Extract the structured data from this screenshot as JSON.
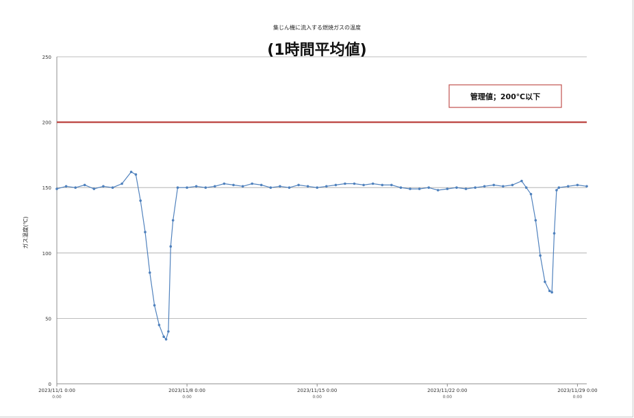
{
  "chart_data": {
    "type": "line",
    "subtitle": "集じん機に流入する燃焼ガスの温度",
    "title": "(1時間平均値)",
    "xlabel": "",
    "ylabel": "ガス温度(℃)",
    "ylim": [
      0,
      250
    ],
    "yticks": [
      "0",
      "50",
      "100",
      "150",
      "200",
      "250"
    ],
    "xlim": [
      "2023-11-01 00:00",
      "2023-11-29 12:00"
    ],
    "xticks": [
      {
        "date": "2023-11-01 00:00",
        "line1": "2023/11/1 0:00",
        "line2": "0:00"
      },
      {
        "date": "2023-11-08 00:00",
        "line1": "2023/11/8 0:00",
        "line2": "0:00"
      },
      {
        "date": "2023-11-15 00:00",
        "line1": "2023/11/15 0:00",
        "line2": "0:00"
      },
      {
        "date": "2023-11-22 00:00",
        "line1": "2023/11/22 0:00",
        "line2": "0:00"
      },
      {
        "date": "2023-11-29 00:00",
        "line1": "2023/11/29 0:00",
        "line2": "0:00"
      }
    ],
    "grid": true,
    "limit_line": {
      "value": 200,
      "color": "#c0504d"
    },
    "annotation": {
      "text": "管理値；200℃以下",
      "border_color": "#c0504d"
    },
    "series_color": "#4f81bd",
    "points": [
      [
        "2023-11-01 00:00",
        149
      ],
      [
        "2023-11-01 12:00",
        151
      ],
      [
        "2023-11-02 00:00",
        150
      ],
      [
        "2023-11-02 12:00",
        152
      ],
      [
        "2023-11-03 00:00",
        149
      ],
      [
        "2023-11-03 12:00",
        151
      ],
      [
        "2023-11-04 00:00",
        150
      ],
      [
        "2023-11-04 12:00",
        153
      ],
      [
        "2023-11-05 00:00",
        162
      ],
      [
        "2023-11-05 06:00",
        160
      ],
      [
        "2023-11-05 12:00",
        140
      ],
      [
        "2023-11-05 18:00",
        116
      ],
      [
        "2023-11-06 00:00",
        85
      ],
      [
        "2023-11-06 06:00",
        60
      ],
      [
        "2023-11-06 12:00",
        45
      ],
      [
        "2023-11-06 18:00",
        36
      ],
      [
        "2023-11-06 21:00",
        34
      ],
      [
        "2023-11-07 00:00",
        40
      ],
      [
        "2023-11-07 03:00",
        105
      ],
      [
        "2023-11-07 06:00",
        125
      ],
      [
        "2023-11-07 12:00",
        150
      ],
      [
        "2023-11-08 00:00",
        150
      ],
      [
        "2023-11-08 12:00",
        151
      ],
      [
        "2023-11-09 00:00",
        150
      ],
      [
        "2023-11-09 12:00",
        151
      ],
      [
        "2023-11-10 00:00",
        153
      ],
      [
        "2023-11-10 12:00",
        152
      ],
      [
        "2023-11-11 00:00",
        151
      ],
      [
        "2023-11-11 12:00",
        153
      ],
      [
        "2023-11-12 00:00",
        152
      ],
      [
        "2023-11-12 12:00",
        150
      ],
      [
        "2023-11-13 00:00",
        151
      ],
      [
        "2023-11-13 12:00",
        150
      ],
      [
        "2023-11-14 00:00",
        152
      ],
      [
        "2023-11-14 12:00",
        151
      ],
      [
        "2023-11-15 00:00",
        150
      ],
      [
        "2023-11-15 12:00",
        151
      ],
      [
        "2023-11-16 00:00",
        152
      ],
      [
        "2023-11-16 12:00",
        153
      ],
      [
        "2023-11-17 00:00",
        153
      ],
      [
        "2023-11-17 12:00",
        152
      ],
      [
        "2023-11-18 00:00",
        153
      ],
      [
        "2023-11-18 12:00",
        152
      ],
      [
        "2023-11-19 00:00",
        152
      ],
      [
        "2023-11-19 12:00",
        150
      ],
      [
        "2023-11-20 00:00",
        149
      ],
      [
        "2023-11-20 12:00",
        149
      ],
      [
        "2023-11-21 00:00",
        150
      ],
      [
        "2023-11-21 12:00",
        148
      ],
      [
        "2023-11-22 00:00",
        149
      ],
      [
        "2023-11-22 12:00",
        150
      ],
      [
        "2023-11-23 00:00",
        149
      ],
      [
        "2023-11-23 12:00",
        150
      ],
      [
        "2023-11-24 00:00",
        151
      ],
      [
        "2023-11-24 12:00",
        152
      ],
      [
        "2023-11-25 00:00",
        151
      ],
      [
        "2023-11-25 12:00",
        152
      ],
      [
        "2023-11-26 00:00",
        155
      ],
      [
        "2023-11-26 06:00",
        150
      ],
      [
        "2023-11-26 12:00",
        145
      ],
      [
        "2023-11-26 18:00",
        125
      ],
      [
        "2023-11-27 00:00",
        98
      ],
      [
        "2023-11-27 06:00",
        78
      ],
      [
        "2023-11-27 12:00",
        71
      ],
      [
        "2023-11-27 15:00",
        70
      ],
      [
        "2023-11-27 18:00",
        115
      ],
      [
        "2023-11-27 21:00",
        148
      ],
      [
        "2023-11-28 00:00",
        150
      ],
      [
        "2023-11-28 12:00",
        151
      ],
      [
        "2023-11-29 00:00",
        152
      ],
      [
        "2023-11-29 12:00",
        151
      ]
    ]
  }
}
